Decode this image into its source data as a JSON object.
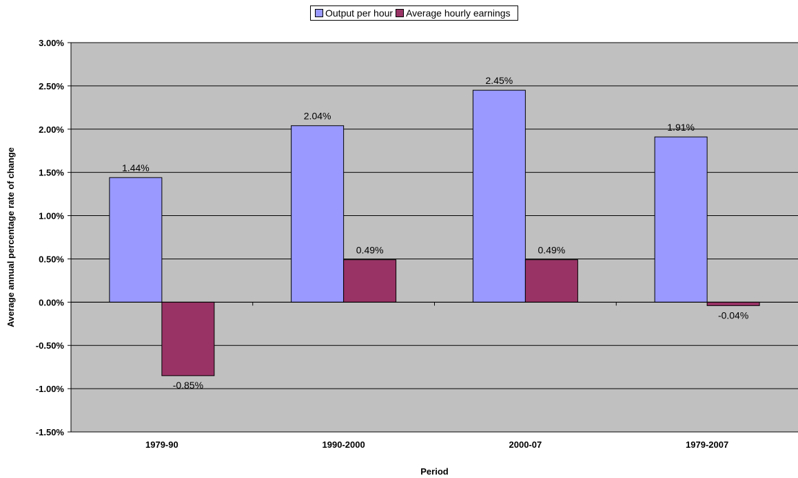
{
  "chart_data": {
    "type": "bar",
    "categories": [
      "1979-90",
      "1990-2000",
      "2000-07",
      "1979-2007"
    ],
    "series": [
      {
        "name": "Output per hour",
        "values": [
          1.44,
          2.04,
          2.45,
          1.91
        ],
        "labels": [
          "1.44%",
          "2.04%",
          "2.45%",
          "1.91%"
        ]
      },
      {
        "name": "Average hourly earnings",
        "values": [
          -0.85,
          0.49,
          0.49,
          -0.04
        ],
        "labels": [
          "-0.85%",
          "0.49%",
          "0.49%",
          "-0.04%"
        ]
      }
    ],
    "xlabel": "Period",
    "ylabel": "Average annual percentage rate of change",
    "ylim": [
      -1.5,
      3.0
    ],
    "ytick_values": [
      3.0,
      2.5,
      2.0,
      1.5,
      1.0,
      0.5,
      0.0,
      -0.5,
      -1.0,
      -1.5
    ],
    "ytick_labels": [
      "3.00%",
      "2.50%",
      "2.00%",
      "1.50%",
      "1.00%",
      "0.50%",
      "0.00%",
      "-0.50%",
      "-1.00%",
      "-1.50%"
    ],
    "grid": true,
    "legend_position": "top",
    "colors": {
      "plot_bg": "#c0c0c0",
      "series": [
        "#9999ff",
        "#993366"
      ]
    }
  }
}
